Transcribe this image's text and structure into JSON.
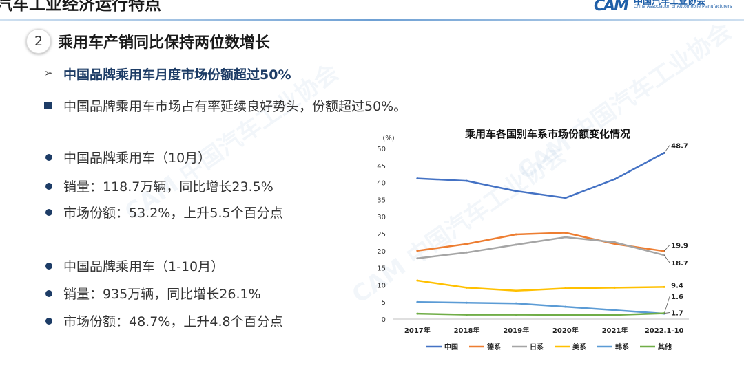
{
  "header": {
    "title": "汽车工业经济运行特点",
    "logo_mark": "CAM",
    "logo_cn": "中国汽车工业协会",
    "logo_en": "China Association of Automobile Manufacturers"
  },
  "section": {
    "number": "2",
    "title": "乘用车产销同比保持两位数增长"
  },
  "content": {
    "subheading": "中国品牌乘用车月度市场份额超过50%",
    "summary": "中国品牌乘用车市场占有率延续良好势头，份额超过50%。",
    "group1": [
      "中国品牌乘用车（10月）",
      "销量：118.7万辆，同比增长23.5%",
      "市场份额：53.2%，上升5.5个百分点"
    ],
    "group2": [
      "中国品牌乘用车（1-10月）",
      "销量：935万辆，同比增长26.1%",
      "市场份额：48.7%，上升4.8个百分点"
    ]
  },
  "chart_data": {
    "type": "line",
    "title": "乘用车各国别车系市场份额变化情况",
    "ylabel": "(%)",
    "xlabel": "",
    "ylim": [
      0,
      50
    ],
    "yticks": [
      0,
      5,
      10,
      15,
      20,
      25,
      30,
      35,
      40,
      45,
      50
    ],
    "categories": [
      "2017年",
      "2018年",
      "2019年",
      "2020年",
      "2021年",
      "2022.1-10"
    ],
    "series": [
      {
        "name": "中国",
        "color": "#4472c4",
        "values": [
          41.2,
          40.5,
          37.5,
          35.5,
          41.0,
          48.7
        ],
        "end_label": "48.7"
      },
      {
        "name": "德系",
        "color": "#ed7d31",
        "values": [
          20.0,
          22.0,
          24.8,
          25.3,
          22.0,
          19.9
        ],
        "end_label": "19.9"
      },
      {
        "name": "日系",
        "color": "#a5a5a5",
        "values": [
          17.8,
          19.5,
          21.8,
          24.0,
          22.5,
          18.7
        ],
        "end_label": "18.7"
      },
      {
        "name": "美系",
        "color": "#ffc000",
        "values": [
          11.3,
          9.2,
          8.3,
          9.0,
          9.2,
          9.4
        ],
        "end_label": "9.4"
      },
      {
        "name": "韩系",
        "color": "#5b9bd5",
        "values": [
          5.0,
          4.8,
          4.6,
          3.6,
          2.6,
          1.6
        ],
        "end_label": "1.6"
      },
      {
        "name": "其他",
        "color": "#70ad47",
        "values": [
          1.6,
          1.3,
          1.3,
          1.2,
          1.2,
          1.7
        ],
        "end_label": "1.7"
      }
    ],
    "grid": false,
    "legend": "bottom"
  }
}
